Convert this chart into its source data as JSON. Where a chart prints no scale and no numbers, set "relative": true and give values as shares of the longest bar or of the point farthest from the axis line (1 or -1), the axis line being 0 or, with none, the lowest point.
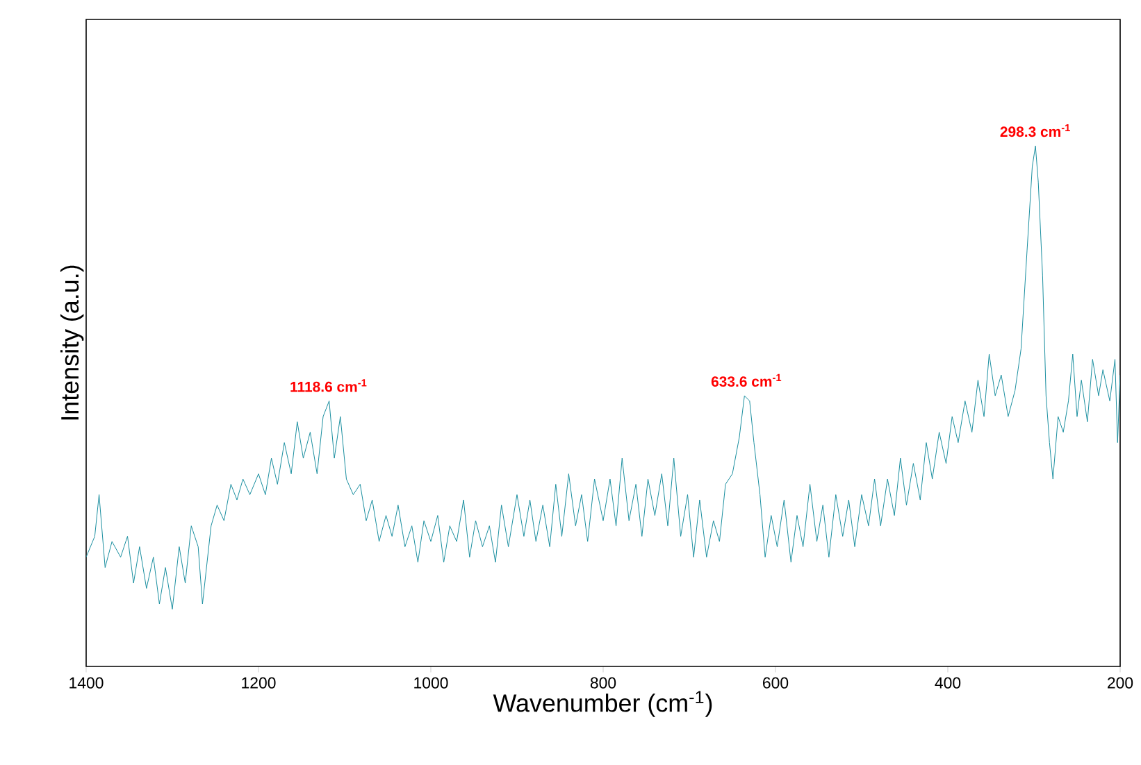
{
  "chart_data": {
    "type": "line",
    "relative": true,
    "xlabel": "Wavenumber (cm$^{-1}$)",
    "ylabel": "Intensity (a.u.)",
    "xlim": [
      1400,
      200
    ],
    "xticks": [
      1400,
      1200,
      1000,
      800,
      600,
      400,
      200
    ],
    "tick_labels": "x",
    "color": "#1a8fa0",
    "x": [
      1400,
      1390,
      1385,
      1378,
      1370,
      1360,
      1352,
      1345,
      1338,
      1330,
      1322,
      1315,
      1308,
      1300,
      1292,
      1285,
      1278,
      1270,
      1265,
      1255,
      1248,
      1240,
      1232,
      1225,
      1218,
      1210,
      1200,
      1192,
      1185,
      1178,
      1170,
      1162,
      1155,
      1148,
      1140,
      1132,
      1125,
      1118,
      1112,
      1105,
      1098,
      1090,
      1082,
      1075,
      1068,
      1060,
      1052,
      1045,
      1038,
      1030,
      1022,
      1015,
      1008,
      1000,
      992,
      985,
      978,
      970,
      962,
      955,
      948,
      940,
      932,
      925,
      918,
      910,
      900,
      892,
      885,
      878,
      870,
      862,
      855,
      848,
      840,
      832,
      825,
      818,
      810,
      800,
      792,
      785,
      778,
      770,
      762,
      755,
      748,
      740,
      732,
      725,
      718,
      710,
      702,
      695,
      688,
      680,
      672,
      665,
      658,
      650,
      642,
      636,
      630,
      625,
      618,
      612,
      605,
      598,
      590,
      582,
      575,
      568,
      560,
      552,
      545,
      538,
      530,
      522,
      515,
      508,
      500,
      492,
      485,
      478,
      470,
      462,
      455,
      448,
      440,
      432,
      425,
      418,
      410,
      402,
      395,
      388,
      380,
      372,
      365,
      358,
      352,
      345,
      338,
      330,
      322,
      315,
      308,
      302,
      298.3,
      295,
      290,
      286,
      282,
      278,
      272,
      266,
      260,
      255,
      250,
      245,
      238,
      232,
      225,
      220,
      212,
      206,
      203,
      200
    ],
    "values": [
      0.21,
      0.25,
      0.33,
      0.19,
      0.24,
      0.21,
      0.25,
      0.16,
      0.23,
      0.15,
      0.21,
      0.12,
      0.19,
      0.11,
      0.23,
      0.16,
      0.27,
      0.23,
      0.12,
      0.27,
      0.31,
      0.28,
      0.35,
      0.32,
      0.36,
      0.33,
      0.37,
      0.33,
      0.4,
      0.35,
      0.43,
      0.37,
      0.47,
      0.4,
      0.45,
      0.37,
      0.48,
      0.51,
      0.4,
      0.48,
      0.36,
      0.33,
      0.35,
      0.28,
      0.32,
      0.24,
      0.29,
      0.25,
      0.31,
      0.23,
      0.27,
      0.2,
      0.28,
      0.24,
      0.29,
      0.2,
      0.27,
      0.24,
      0.32,
      0.21,
      0.28,
      0.23,
      0.27,
      0.2,
      0.31,
      0.23,
      0.33,
      0.25,
      0.32,
      0.24,
      0.31,
      0.23,
      0.35,
      0.25,
      0.37,
      0.27,
      0.33,
      0.24,
      0.36,
      0.28,
      0.36,
      0.27,
      0.4,
      0.28,
      0.35,
      0.25,
      0.36,
      0.29,
      0.37,
      0.27,
      0.4,
      0.25,
      0.33,
      0.21,
      0.32,
      0.21,
      0.28,
      0.24,
      0.35,
      0.37,
      0.44,
      0.52,
      0.51,
      0.43,
      0.33,
      0.21,
      0.29,
      0.23,
      0.32,
      0.2,
      0.29,
      0.23,
      0.35,
      0.24,
      0.31,
      0.21,
      0.33,
      0.25,
      0.32,
      0.23,
      0.33,
      0.27,
      0.36,
      0.27,
      0.36,
      0.29,
      0.4,
      0.31,
      0.39,
      0.32,
      0.43,
      0.36,
      0.45,
      0.39,
      0.48,
      0.43,
      0.51,
      0.45,
      0.55,
      0.48,
      0.6,
      0.52,
      0.56,
      0.48,
      0.53,
      0.61,
      0.8,
      0.96,
      1,
      0.93,
      0.75,
      0.52,
      0.43,
      0.36,
      0.48,
      0.45,
      0.51,
      0.6,
      0.48,
      0.55,
      0.47,
      0.59,
      0.52,
      0.57,
      0.51,
      0.59,
      0.43,
      0.56
    ],
    "annotations": [
      {
        "text": "1118.6 cm$^{-1}$",
        "x": 1118.6,
        "y": 0.51
      },
      {
        "text": "633.6 cm$^{-1}$",
        "x": 633.6,
        "y": 0.52
      },
      {
        "text": "298.3 cm$^{-1}$",
        "x": 298.3,
        "y": 1
      }
    ]
  }
}
